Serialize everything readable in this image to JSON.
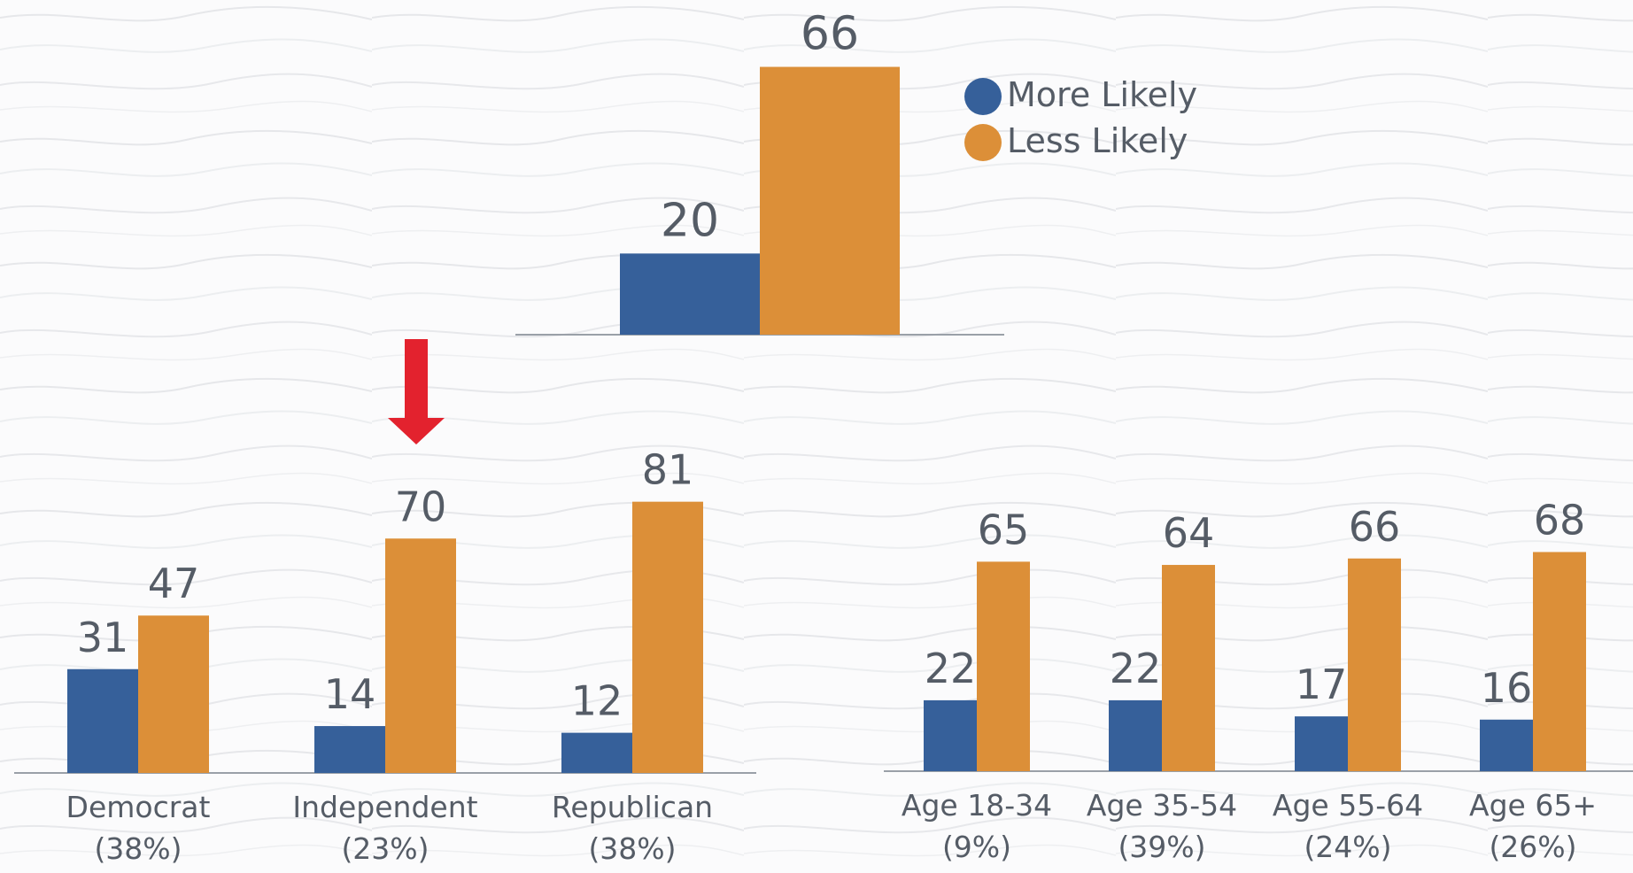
{
  "colors": {
    "more": "#36609a",
    "less": "#dc8f38",
    "axis": "#9aa0a8",
    "arrow": "#e3222e",
    "text": "#555c66"
  },
  "legend": [
    {
      "label": "More Likely",
      "color_key": "more"
    },
    {
      "label": "Less Likely",
      "color_key": "less"
    }
  ],
  "chart_data": [
    {
      "type": "bar",
      "id": "overall",
      "categories": [
        ""
      ],
      "series": [
        {
          "name": "More Likely",
          "values": [
            20
          ]
        },
        {
          "name": "Less Likely",
          "values": [
            66
          ]
        }
      ],
      "legend_position": "right"
    },
    {
      "type": "bar",
      "id": "party",
      "categories": [
        {
          "line1": "Democrat",
          "line2": "(38%)"
        },
        {
          "line1": "Independent",
          "line2": "(23%)"
        },
        {
          "line1": "Republican",
          "line2": "(38%)"
        }
      ],
      "series": [
        {
          "name": "More Likely",
          "values": [
            31,
            14,
            12
          ]
        },
        {
          "name": "Less Likely",
          "values": [
            47,
            70,
            81
          ]
        }
      ]
    },
    {
      "type": "bar",
      "id": "age",
      "categories": [
        {
          "line1": "Age 18-34",
          "line2": "(9%)"
        },
        {
          "line1": "Age 35-54",
          "line2": "(39%)"
        },
        {
          "line1": "Age 55-64",
          "line2": "(24%)"
        },
        {
          "line1": "Age 65+",
          "line2": "(26%)"
        }
      ],
      "series": [
        {
          "name": "More Likely",
          "values": [
            22,
            22,
            17,
            16
          ]
        },
        {
          "name": "Less Likely",
          "values": [
            65,
            64,
            66,
            68
          ]
        }
      ]
    }
  ]
}
